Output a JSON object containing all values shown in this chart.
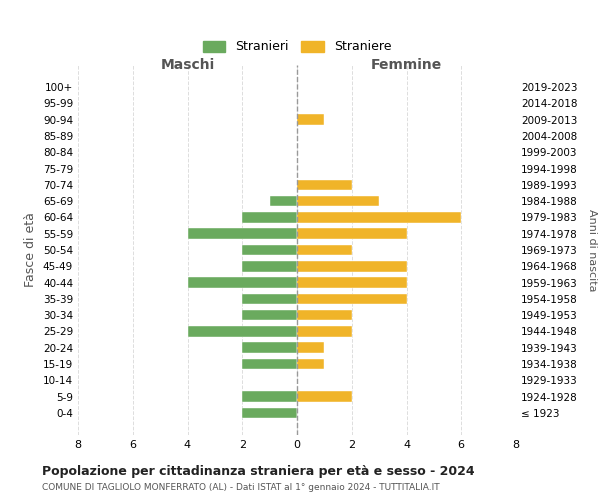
{
  "age_groups": [
    "100+",
    "95-99",
    "90-94",
    "85-89",
    "80-84",
    "75-79",
    "70-74",
    "65-69",
    "60-64",
    "55-59",
    "50-54",
    "45-49",
    "40-44",
    "35-39",
    "30-34",
    "25-29",
    "20-24",
    "15-19",
    "10-14",
    "5-9",
    "0-4"
  ],
  "birth_years": [
    "≤ 1923",
    "1924-1928",
    "1929-1933",
    "1934-1938",
    "1939-1943",
    "1944-1948",
    "1949-1953",
    "1954-1958",
    "1959-1963",
    "1964-1968",
    "1969-1973",
    "1974-1978",
    "1979-1983",
    "1984-1988",
    "1989-1993",
    "1994-1998",
    "1999-2003",
    "2004-2008",
    "2009-2013",
    "2014-2018",
    "2019-2023"
  ],
  "stranieri": [
    0,
    0,
    0,
    0,
    0,
    0,
    0,
    1,
    2,
    4,
    2,
    2,
    4,
    2,
    2,
    4,
    2,
    2,
    0,
    2,
    2
  ],
  "straniere": [
    0,
    0,
    1,
    0,
    0,
    0,
    2,
    3,
    6,
    4,
    2,
    4,
    4,
    4,
    2,
    2,
    1,
    1,
    0,
    2,
    0
  ],
  "color_stranieri": "#6aaa5e",
  "color_straniere": "#f0b429",
  "xlim": 8,
  "xlabel_maschi": "Maschi",
  "xlabel_femmine": "Femmine",
  "ylabel_left": "Fasce di età",
  "ylabel_right": "Anni di nascita",
  "title": "Popolazione per cittadinanza straniera per età e sesso - 2024",
  "subtitle": "COMUNE DI TAGLIOLO MONFERRATO (AL) - Dati ISTAT al 1° gennaio 2024 - TUTTITALIA.IT",
  "legend_stranieri": "Stranieri",
  "legend_straniere": "Straniere",
  "bg_color": "#ffffff",
  "grid_color": "#dddddd"
}
